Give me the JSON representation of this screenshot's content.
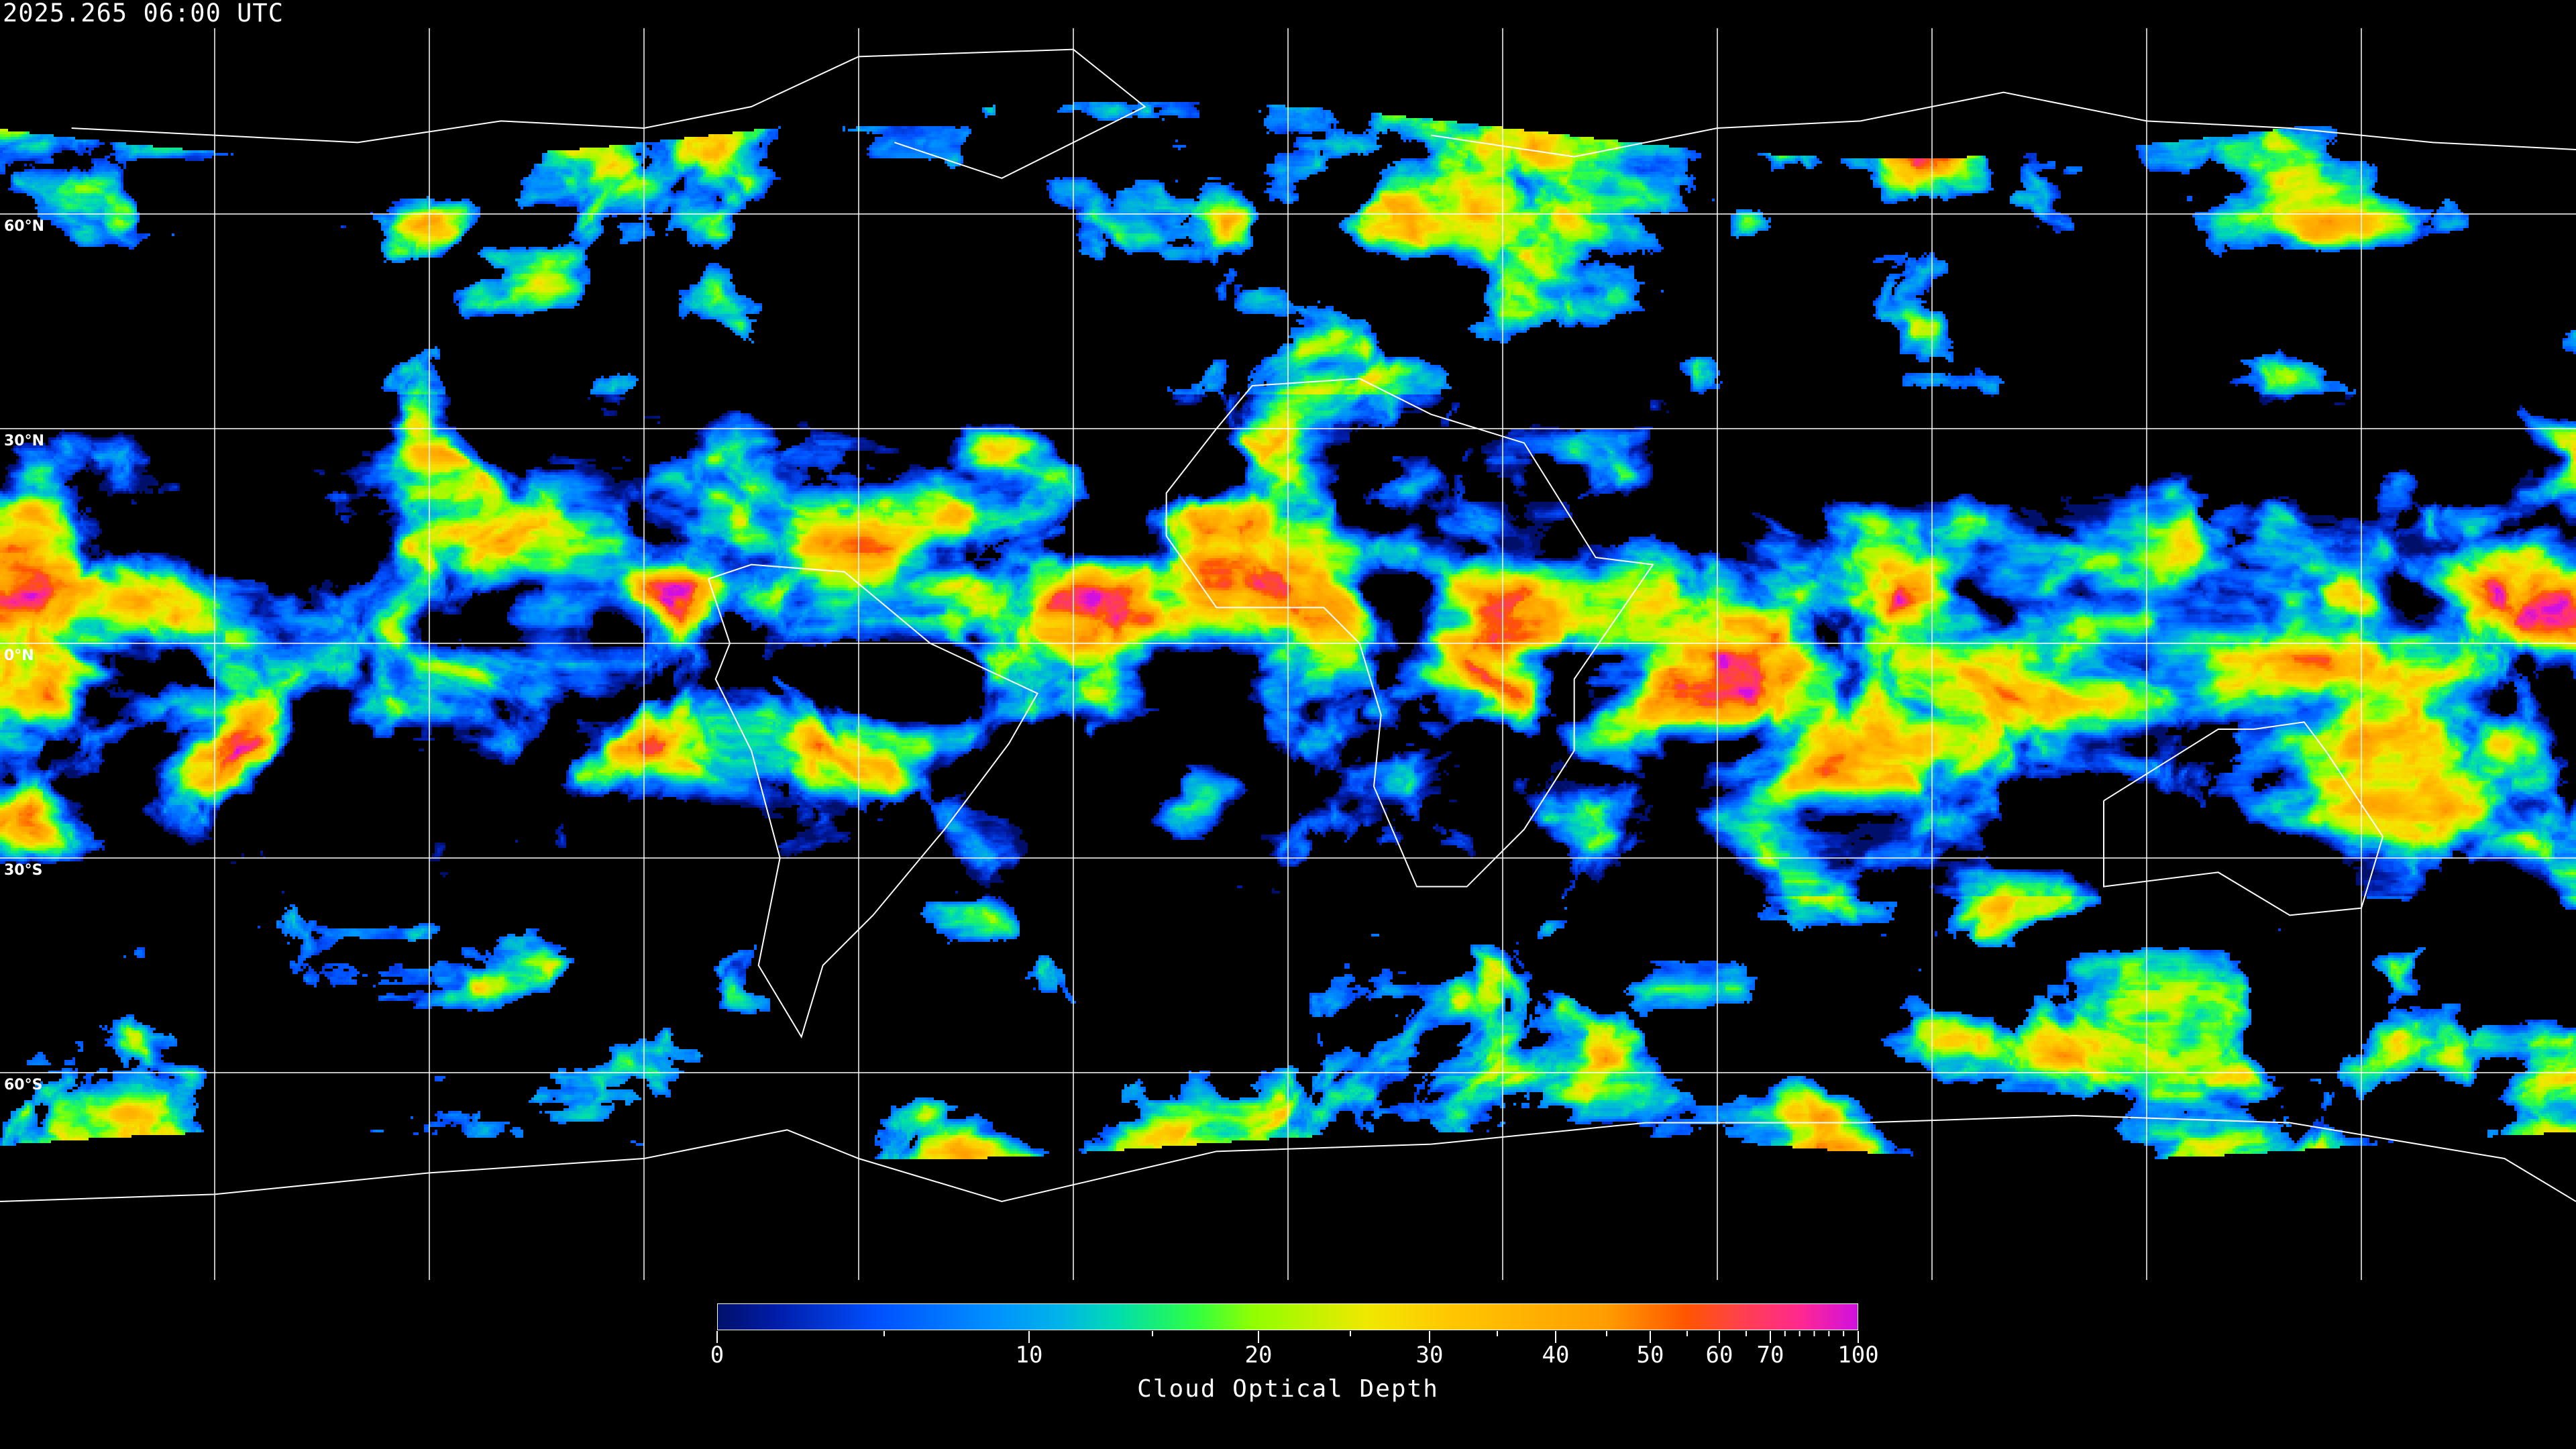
{
  "timestamp": "2025.265 06:00 UTC",
  "map": {
    "projection": "equirectangular",
    "gridlines": true,
    "gridline_color": "#ffffff",
    "coastline_color": "#ffffff",
    "longitude_gridlines_deg": [
      -150,
      -120,
      -90,
      -60,
      -30,
      0,
      30,
      60,
      90,
      120,
      150
    ],
    "latitude_labels": [
      {
        "lat": 60,
        "label": "60°N"
      },
      {
        "lat": 30,
        "label": "30°N"
      },
      {
        "lat": 0,
        "label": "0°N"
      },
      {
        "lat": -30,
        "label": "30°S"
      },
      {
        "lat": -60,
        "label": "60°S"
      }
    ]
  },
  "colorbar": {
    "title": "Cloud Optical Depth",
    "range": [
      0,
      100
    ],
    "tick_labels": [
      "0",
      "10",
      "20",
      "30",
      "40",
      "50",
      "60",
      "70",
      "100"
    ],
    "colors": [
      "#00106a",
      "#0050ff",
      "#00a0ff",
      "#00dcb0",
      "#30ff40",
      "#90ff00",
      "#f0e800",
      "#ffc800",
      "#ff9c00",
      "#ff5500",
      "#ff2890",
      "#d010e0"
    ]
  }
}
